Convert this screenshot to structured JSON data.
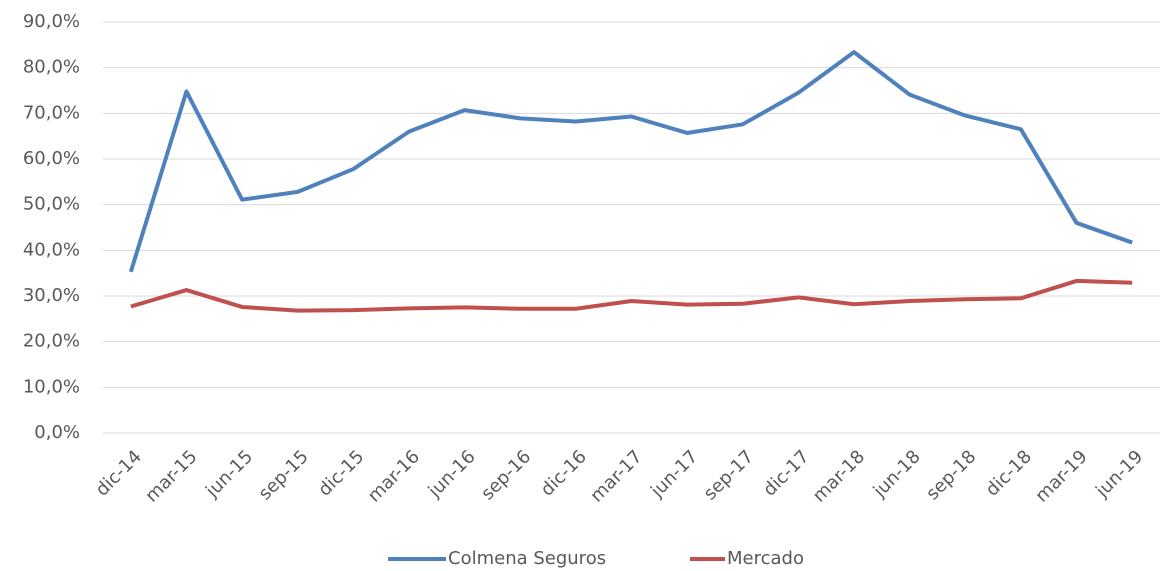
{
  "chart_data": {
    "type": "line",
    "categories": [
      "dic-14",
      "mar-15",
      "jun-15",
      "sep-15",
      "dic-15",
      "mar-16",
      "jun-16",
      "sep-16",
      "dic-16",
      "mar-17",
      "jun-17",
      "sep-17",
      "dic-17",
      "mar-18",
      "jun-18",
      "sep-18",
      "dic-18",
      "mar-19",
      "jun-19"
    ],
    "series": [
      {
        "name": "Colmena Seguros",
        "color": "#4f81bd",
        "values": [
          35.3,
          74.8,
          51.1,
          52.8,
          57.8,
          66.0,
          70.7,
          68.9,
          68.2,
          69.3,
          65.7,
          67.6,
          74.5,
          83.4,
          74.1,
          69.5,
          66.5,
          46.0,
          41.7
        ]
      },
      {
        "name": "Mercado",
        "color": "#c0504d",
        "values": [
          27.7,
          31.3,
          27.6,
          26.8,
          26.9,
          27.3,
          27.5,
          27.2,
          27.2,
          28.9,
          28.1,
          28.3,
          29.7,
          28.2,
          28.9,
          29.3,
          29.5,
          33.3,
          32.9
        ]
      }
    ],
    "ylim": [
      0,
      90
    ],
    "yticks": [
      {
        "value": 0,
        "label": "0,0%"
      },
      {
        "value": 10,
        "label": "10,0%"
      },
      {
        "value": 20,
        "label": "20,0%"
      },
      {
        "value": 30,
        "label": "30,0%"
      },
      {
        "value": 40,
        "label": "40,0%"
      },
      {
        "value": 50,
        "label": "50,0%"
      },
      {
        "value": 60,
        "label": "60,0%"
      },
      {
        "value": 70,
        "label": "70,0%"
      },
      {
        "value": 80,
        "label": "80,0%"
      },
      {
        "value": 90,
        "label": "90,0%"
      }
    ],
    "grid": true,
    "legend": "bottom"
  }
}
